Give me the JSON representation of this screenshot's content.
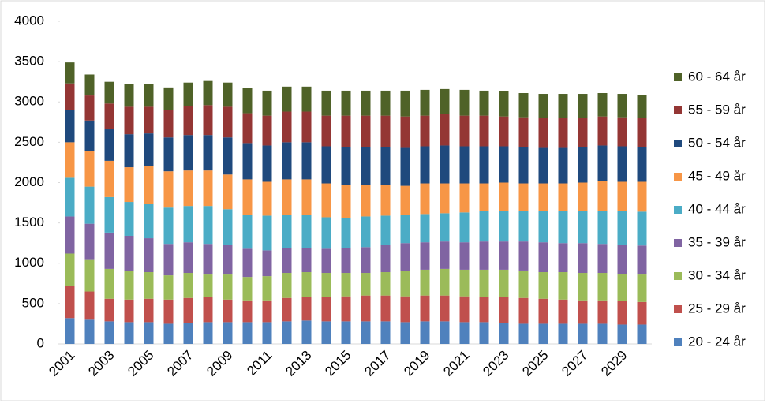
{
  "chart_data": {
    "type": "stacked_bar",
    "categories": [
      "2001",
      null,
      "2003",
      null,
      "2005",
      null,
      "2007",
      null,
      "2009",
      null,
      "2011",
      null,
      "2013",
      null,
      "2015",
      null,
      "2017",
      null,
      "2019",
      null,
      "2021",
      null,
      "2023",
      null,
      "2025",
      null,
      "2027",
      null,
      "2029",
      null
    ],
    "series": [
      {
        "name": "20 - 24 år",
        "color": "#4f81bd",
        "values": [
          320,
          300,
          280,
          270,
          270,
          250,
          260,
          270,
          270,
          270,
          270,
          280,
          290,
          280,
          280,
          280,
          280,
          270,
          280,
          280,
          270,
          270,
          260,
          250,
          250,
          250,
          250,
          250,
          240,
          240
        ]
      },
      {
        "name": "25 - 29 år",
        "color": "#c0504d",
        "values": [
          400,
          350,
          280,
          280,
          290,
          300,
          310,
          310,
          280,
          270,
          270,
          290,
          290,
          300,
          310,
          320,
          320,
          320,
          320,
          320,
          320,
          310,
          320,
          320,
          310,
          300,
          290,
          290,
          290,
          280
        ]
      },
      {
        "name": "30 - 34 år",
        "color": "#9bbb59",
        "values": [
          400,
          400,
          370,
          350,
          330,
          300,
          310,
          280,
          310,
          290,
          300,
          310,
          310,
          300,
          290,
          280,
          290,
          310,
          320,
          330,
          330,
          340,
          340,
          340,
          330,
          340,
          340,
          340,
          340,
          340
        ]
      },
      {
        "name": "35 - 39 år",
        "color": "#8064a2",
        "values": [
          460,
          440,
          450,
          440,
          420,
          390,
          380,
          380,
          370,
          350,
          320,
          310,
          300,
          300,
          310,
          320,
          340,
          350,
          340,
          340,
          340,
          350,
          350,
          360,
          370,
          360,
          370,
          360,
          360,
          360
        ]
      },
      {
        "name": "40 - 44 år",
        "color": "#4bacc6",
        "values": [
          480,
          460,
          440,
          420,
          430,
          450,
          450,
          470,
          440,
          420,
          430,
          410,
          410,
          390,
          370,
          380,
          360,
          350,
          350,
          350,
          370,
          380,
          380,
          380,
          390,
          400,
          400,
          410,
          420,
          420
        ]
      },
      {
        "name": "45 - 49 år",
        "color": "#f79646",
        "values": [
          440,
          440,
          450,
          430,
          470,
          450,
          440,
          440,
          430,
          440,
          420,
          440,
          440,
          420,
          410,
          390,
          380,
          360,
          380,
          370,
          360,
          340,
          350,
          340,
          340,
          340,
          350,
          370,
          360,
          370
        ]
      },
      {
        "name": "50 - 54 år",
        "color": "#1f497d",
        "values": [
          400,
          380,
          390,
          410,
          400,
          420,
          440,
          440,
          460,
          450,
          450,
          460,
          460,
          460,
          470,
          470,
          470,
          470,
          460,
          470,
          460,
          460,
          450,
          450,
          440,
          440,
          440,
          440,
          440,
          430
        ]
      },
      {
        "name": "55 - 59 år",
        "color": "#943634",
        "values": [
          330,
          310,
          320,
          340,
          330,
          340,
          360,
          370,
          380,
          370,
          370,
          380,
          380,
          380,
          390,
          390,
          390,
          390,
          380,
          390,
          380,
          380,
          370,
          370,
          370,
          370,
          360,
          360,
          360,
          360
        ]
      },
      {
        "name": "60 - 64 år",
        "color": "#4f6228",
        "values": [
          260,
          260,
          270,
          280,
          280,
          280,
          290,
          300,
          300,
          310,
          310,
          310,
          310,
          310,
          310,
          310,
          310,
          320,
          320,
          310,
          320,
          310,
          310,
          300,
          300,
          300,
          300,
          290,
          290,
          290
        ]
      }
    ],
    "ylim": [
      0,
      4000
    ],
    "yticks": [
      0,
      500,
      1000,
      1500,
      2000,
      2500,
      3000,
      3500,
      4000
    ],
    "legend": "right"
  }
}
